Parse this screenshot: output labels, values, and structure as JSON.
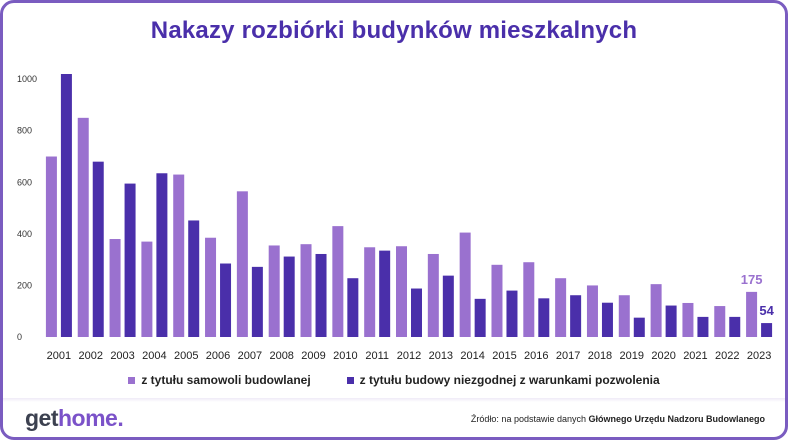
{
  "header": {
    "title": "Nakazy rozbiórki budynków mieszkalnych"
  },
  "chart_data": {
    "type": "bar",
    "title": "Nakazy rozbiórki budynków mieszkalnych",
    "categories": [
      "2001",
      "2002",
      "2003",
      "2004",
      "2005",
      "2006",
      "2007",
      "2008",
      "2009",
      "2010",
      "2011",
      "2012",
      "2013",
      "2014",
      "2015",
      "2016",
      "2017",
      "2018",
      "2019",
      "2020",
      "2021",
      "2022",
      "2023"
    ],
    "series": [
      {
        "name": "z tytułu samowoli budowlanej",
        "color": "#9a71cf",
        "values": [
          700,
          850,
          380,
          370,
          630,
          385,
          565,
          355,
          360,
          430,
          348,
          352,
          322,
          405,
          280,
          290,
          228,
          200,
          162,
          205,
          132,
          120,
          175
        ]
      },
      {
        "name": "z tytułu budowy niezgodnej z warunkami pozwolenia",
        "color": "#4a2faa",
        "values": [
          1020,
          680,
          595,
          635,
          452,
          285,
          272,
          312,
          322,
          228,
          335,
          188,
          238,
          148,
          180,
          150,
          162,
          133,
          75,
          122,
          78,
          78,
          54
        ]
      }
    ],
    "y_ticks": [
      "0",
      "200",
      "400",
      "600",
      "800",
      "1000"
    ],
    "ylim": [
      0,
      1050
    ],
    "grid": false,
    "legend_position": "bottom",
    "annotations": [
      {
        "category": "2023",
        "series": 0,
        "text": "175"
      },
      {
        "category": "2023",
        "series": 1,
        "text": "54"
      }
    ]
  },
  "legend": {
    "items": [
      {
        "label": "z tytułu samowoli budowlanej",
        "color": "#9a71cf"
      },
      {
        "label": "z tytułu budowy niezgodnej z warunkami pozwolenia",
        "color": "#4a2faa"
      }
    ]
  },
  "footer": {
    "logo_part1": "get",
    "logo_part2": "home.",
    "source_prefix": "Źródło: na podstawie danych ",
    "source_bold": "Głównego Urzędu Nadzoru Budowlanego"
  }
}
